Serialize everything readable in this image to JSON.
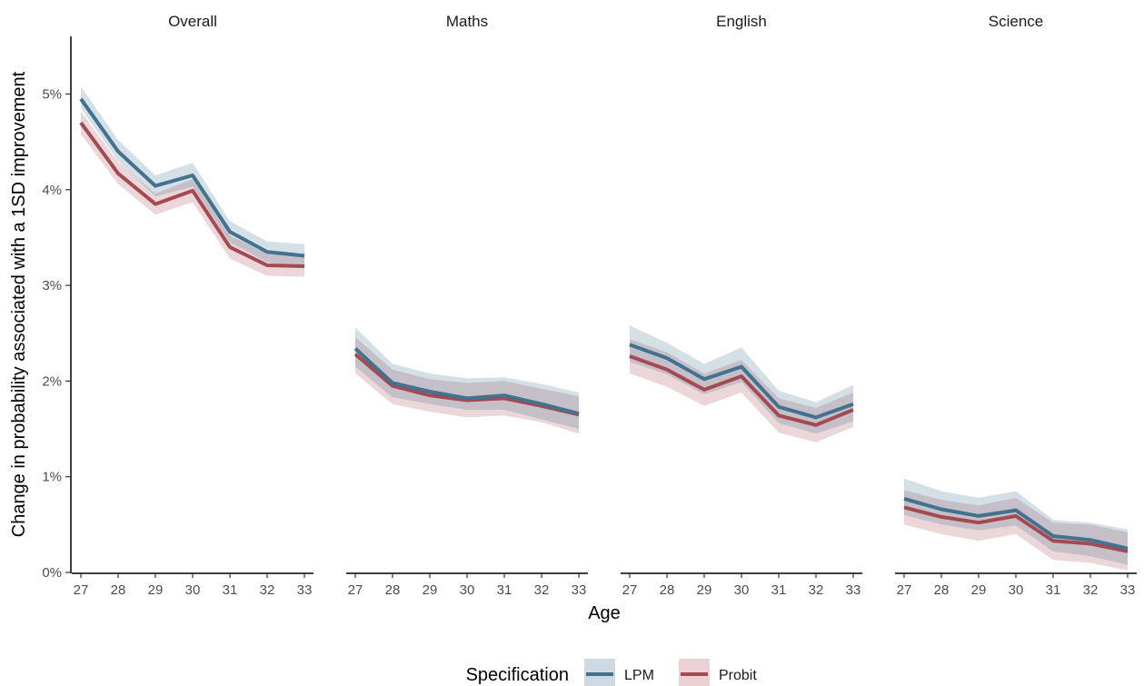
{
  "chart_data": {
    "type": "line",
    "facets": [
      "Overall",
      "Maths",
      "English",
      "Science"
    ],
    "x": [
      27,
      28,
      29,
      30,
      31,
      32,
      33
    ],
    "xlabel": "Age",
    "ylabel": "Change in probability associated with a 1SD improvement",
    "y_ticks": [
      "0%",
      "1%",
      "2%",
      "3%",
      "4%",
      "5%"
    ],
    "ylim": [
      0,
      5.6
    ],
    "y_unit": "%",
    "legend": {
      "title": "Specification",
      "position": "bottom"
    },
    "grid": false,
    "colors": {
      "LPM": "#41728f",
      "Probit": "#a44a50",
      "LPM_band": "#cddae3",
      "Probit_band": "#ebd1d3"
    },
    "series": [
      {
        "name": "LPM",
        "panels": {
          "Overall": {
            "values": [
              4.95,
              4.4,
              4.04,
              4.15,
              3.56,
              3.35,
              3.31
            ],
            "lower": [
              4.85,
              4.3,
              3.93,
              4.03,
              3.45,
              3.24,
              3.19
            ],
            "upper": [
              5.08,
              4.52,
              4.15,
              4.28,
              3.67,
              3.46,
              3.43
            ]
          },
          "Maths": {
            "values": [
              2.34,
              1.98,
              1.89,
              1.82,
              1.85,
              1.76,
              1.66
            ],
            "lower": [
              2.15,
              1.83,
              1.76,
              1.7,
              1.7,
              1.6,
              1.5
            ],
            "upper": [
              2.56,
              2.18,
              2.08,
              2.03,
              2.04,
              1.97,
              1.88
            ]
          },
          "English": {
            "values": [
              2.38,
              2.24,
              2.02,
              2.15,
              1.73,
              1.62,
              1.76
            ],
            "lower": [
              2.2,
              2.07,
              1.86,
              1.99,
              1.56,
              1.45,
              1.58
            ],
            "upper": [
              2.58,
              2.4,
              2.18,
              2.35,
              1.9,
              1.78,
              1.96
            ]
          },
          "Science": {
            "values": [
              0.77,
              0.66,
              0.59,
              0.65,
              0.38,
              0.34,
              0.25
            ],
            "lower": [
              0.6,
              0.5,
              0.44,
              0.49,
              0.22,
              0.17,
              0.08
            ],
            "upper": [
              0.98,
              0.85,
              0.78,
              0.85,
              0.55,
              0.52,
              0.45
            ]
          }
        }
      },
      {
        "name": "Probit",
        "panels": {
          "Overall": {
            "values": [
              4.7,
              4.17,
              3.85,
              3.99,
              3.4,
              3.21,
              3.2
            ],
            "lower": [
              4.58,
              4.06,
              3.74,
              3.87,
              3.28,
              3.1,
              3.09
            ],
            "upper": [
              4.82,
              4.29,
              3.96,
              4.11,
              3.52,
              3.33,
              3.31
            ]
          },
          "Maths": {
            "values": [
              2.28,
              1.95,
              1.85,
              1.8,
              1.82,
              1.74,
              1.65
            ],
            "lower": [
              2.08,
              1.76,
              1.68,
              1.62,
              1.64,
              1.57,
              1.45
            ],
            "upper": [
              2.46,
              2.12,
              2.02,
              1.98,
              2.0,
              1.92,
              1.84
            ]
          },
          "English": {
            "values": [
              2.26,
              2.12,
              1.91,
              2.05,
              1.64,
              1.54,
              1.7
            ],
            "lower": [
              2.08,
              1.94,
              1.74,
              1.88,
              1.46,
              1.36,
              1.52
            ],
            "upper": [
              2.44,
              2.3,
              2.08,
              2.22,
              1.82,
              1.72,
              1.88
            ]
          },
          "Science": {
            "values": [
              0.68,
              0.58,
              0.52,
              0.59,
              0.33,
              0.3,
              0.22
            ],
            "lower": [
              0.5,
              0.4,
              0.33,
              0.4,
              0.13,
              0.1,
              0.02
            ],
            "upper": [
              0.86,
              0.76,
              0.7,
              0.78,
              0.52,
              0.5,
              0.42
            ]
          }
        }
      }
    ]
  }
}
